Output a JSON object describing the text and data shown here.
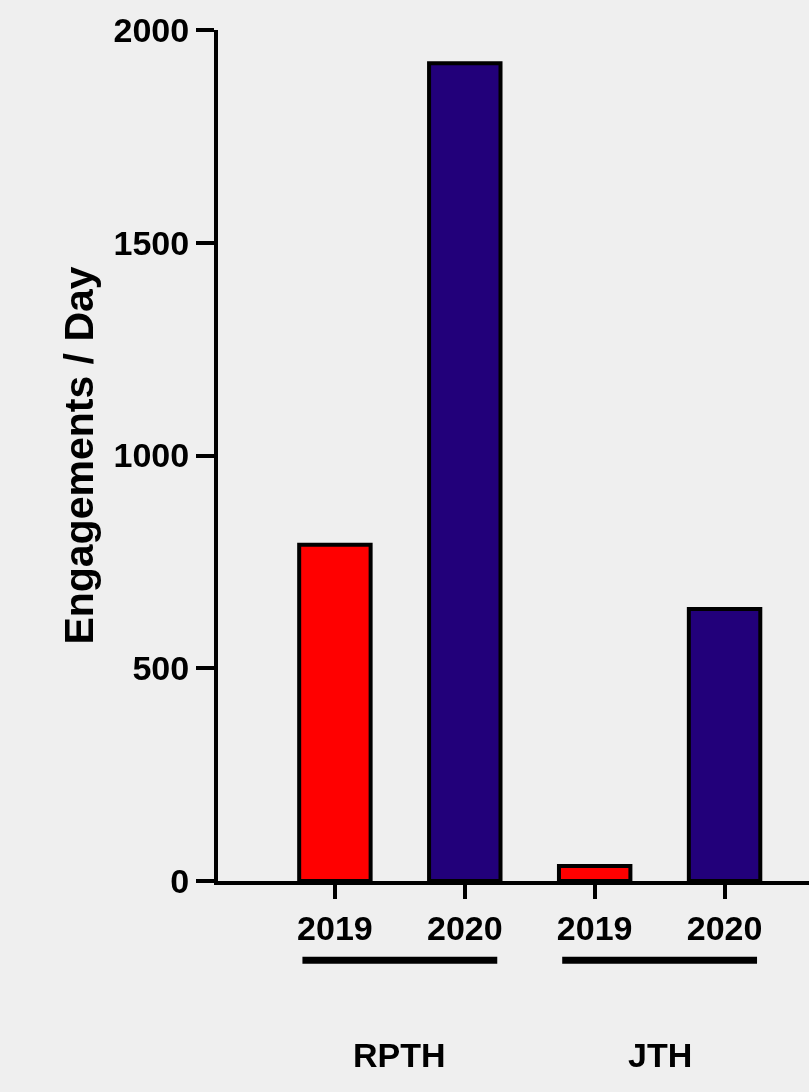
{
  "chart_data": {
    "type": "bar",
    "ylabel": "Engagements / Day",
    "categories": [
      "2019",
      "2020",
      "2019",
      "2020"
    ],
    "values": [
      790,
      1922,
      35,
      639
    ],
    "colors": [
      "#ff0000",
      "#22007a",
      "#ff0000",
      "#22007a"
    ],
    "ylim": [
      0,
      2000
    ],
    "yticks": [
      0,
      500,
      1000,
      1500,
      2000
    ],
    "grid": false,
    "legend": false,
    "annotations": [
      "RPTH",
      "JTH"
    ]
  }
}
